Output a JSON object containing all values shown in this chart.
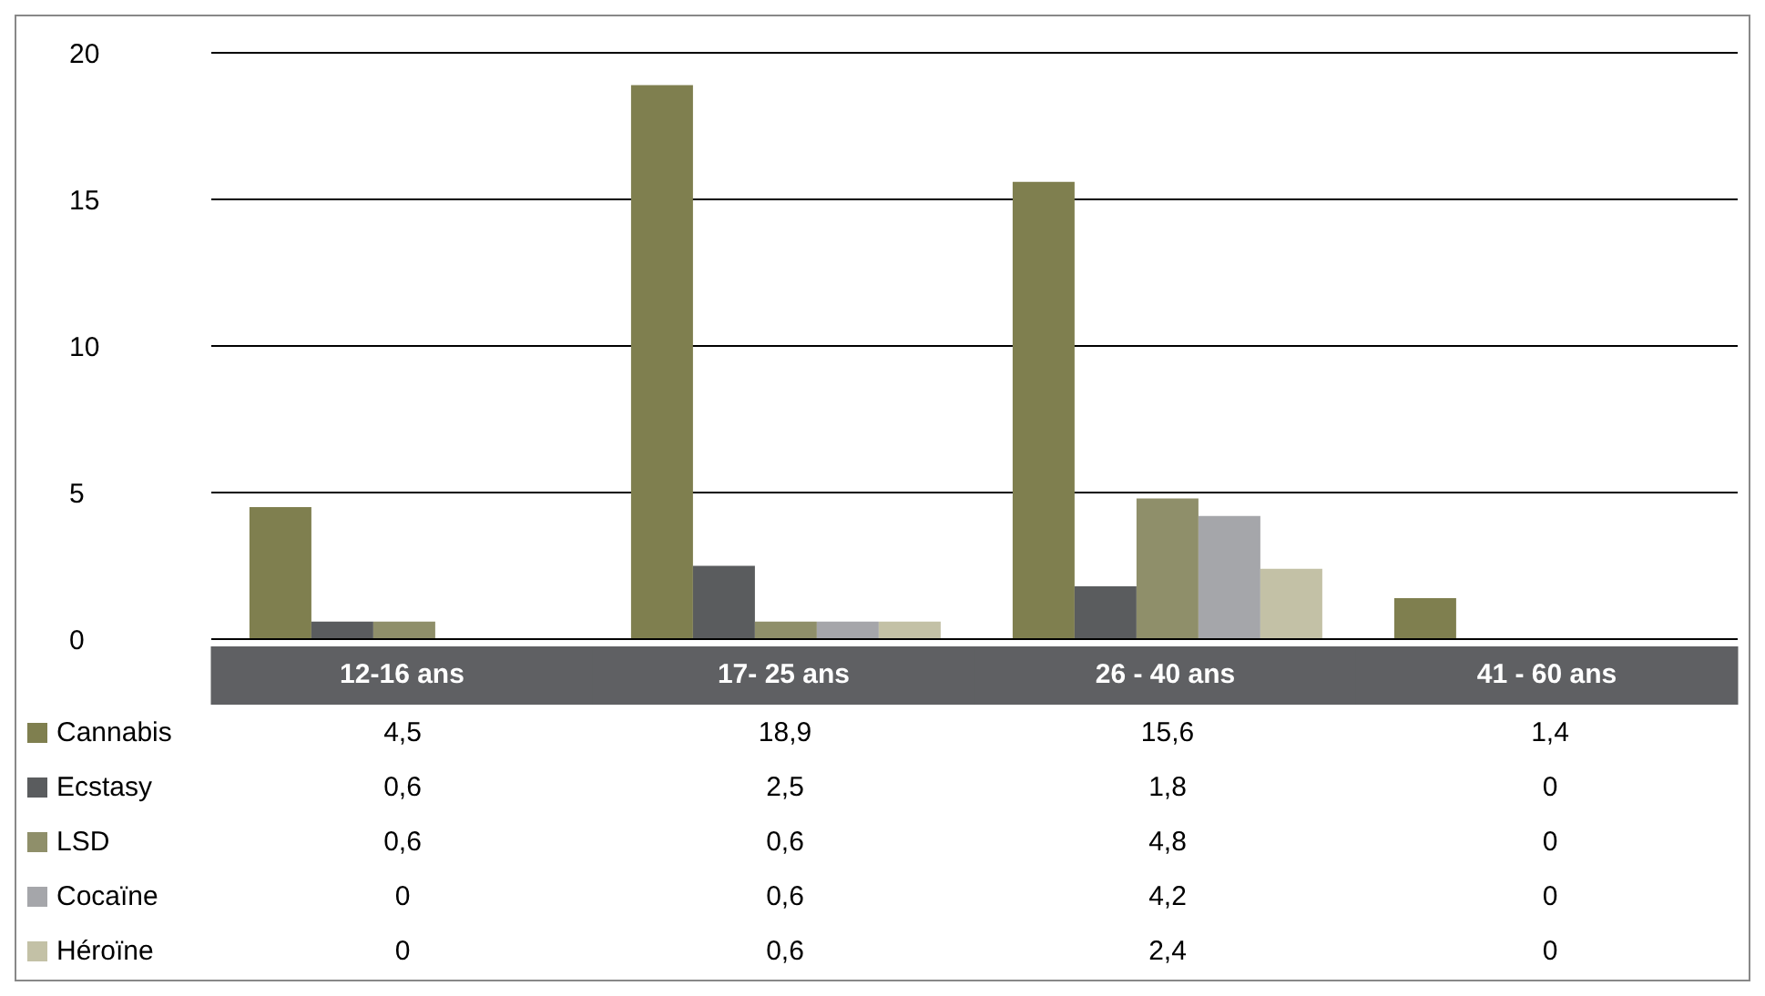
{
  "chart_data": {
    "type": "bar",
    "categories": [
      "12-16 ans",
      "17- 25 ans",
      "26 - 40 ans",
      "41 - 60 ans"
    ],
    "series": [
      {
        "name": "Cannabis",
        "color": "#7f7f4f",
        "values": [
          4.5,
          18.9,
          15.6,
          1.4
        ],
        "value_labels": [
          "4,5",
          "18,9",
          "15,6",
          "1,4"
        ]
      },
      {
        "name": "Ecstasy",
        "color": "#5a5c5e",
        "values": [
          0.6,
          2.5,
          1.8,
          0
        ],
        "value_labels": [
          "0,6",
          "2,5",
          "1,8",
          "0"
        ]
      },
      {
        "name": "LSD",
        "color": "#8f8f6a",
        "values": [
          0.6,
          0.6,
          4.8,
          0
        ],
        "value_labels": [
          "0,6",
          "0,6",
          "4,8",
          "0"
        ]
      },
      {
        "name": "Cocaïne",
        "color": "#a5a6aa",
        "values": [
          0,
          0.6,
          4.2,
          0
        ],
        "value_labels": [
          "0",
          "0,6",
          "4,2",
          "0"
        ]
      },
      {
        "name": "Héroïne",
        "color": "#c3c1a6",
        "values": [
          0,
          0.6,
          2.4,
          0
        ],
        "value_labels": [
          "0",
          "0,6",
          "2,4",
          "0"
        ]
      }
    ],
    "ylim": [
      0,
      20
    ],
    "yticks": [
      0,
      5,
      10,
      15,
      20
    ],
    "grid": "y",
    "legend": "bottom"
  }
}
